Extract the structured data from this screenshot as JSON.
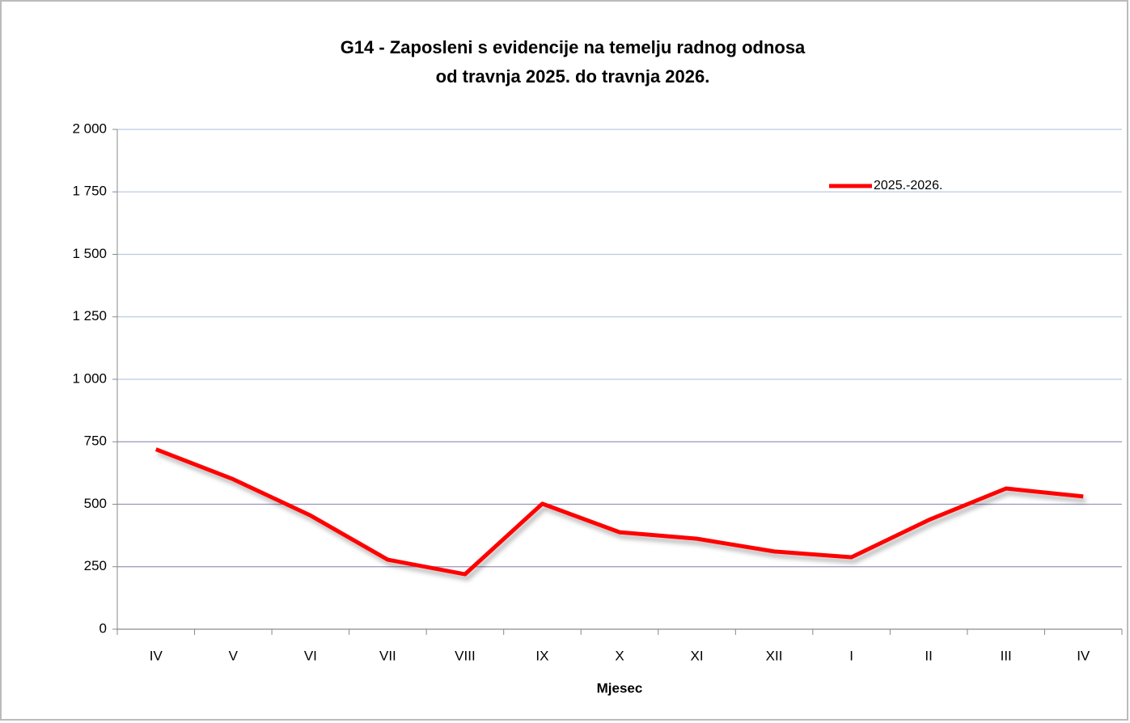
{
  "chart_data": {
    "type": "line",
    "title": [
      "G14 - Zaposleni s evidencije na temelju radnog odnosa",
      "od  travnja 2025. do travnja 2026."
    ],
    "x_label": "Mjesec",
    "categories": [
      "IV",
      "V",
      "VI",
      "VII",
      "VIII",
      "IX",
      "X",
      "XI",
      "XII",
      "I",
      "II",
      "III",
      "IV"
    ],
    "series": [
      {
        "name": "2025.-2026.",
        "color": "#ff0000",
        "values": [
          720,
          600,
          455,
          278,
          220,
          502,
          388,
          362,
          311,
          288,
          437,
          563,
          531
        ]
      }
    ],
    "ylim": [
      0,
      2000
    ],
    "yticks": [
      0,
      250,
      500,
      750,
      {
        "value": 1000,
        "label": "1 000"
      },
      {
        "value": 1250,
        "label": "1 250"
      },
      {
        "value": 1500,
        "label": "1 500"
      },
      {
        "value": 1750,
        "label": "1 750"
      },
      {
        "value": 2000,
        "label": "2 000"
      }
    ],
    "grid": true,
    "legend": "top-right"
  }
}
